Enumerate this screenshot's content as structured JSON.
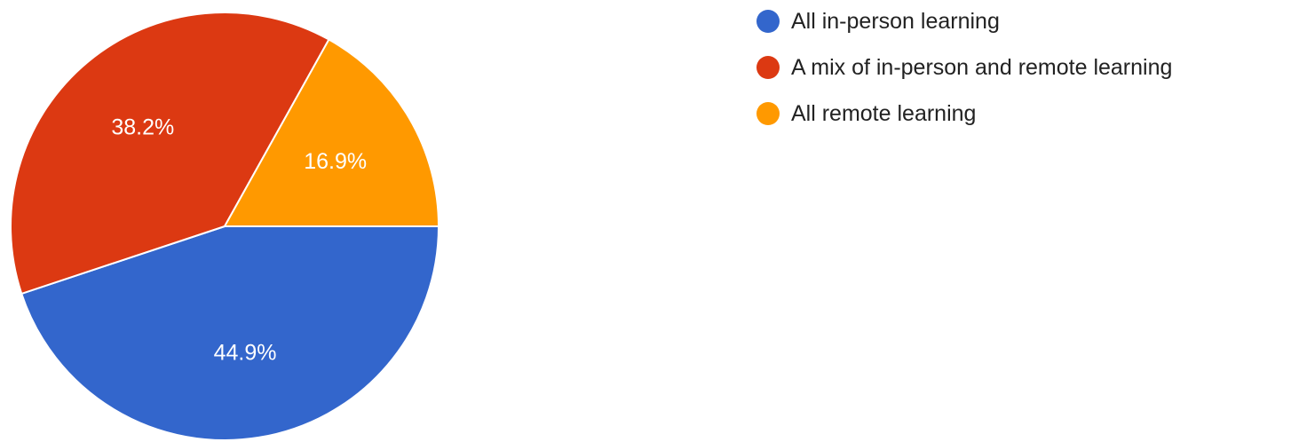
{
  "chart_data": {
    "type": "pie",
    "title": "",
    "legend_position": "top-right",
    "slices": [
      {
        "label": "All in-person learning",
        "value": 44.9,
        "display": "44.9%",
        "color": "#3366cc"
      },
      {
        "label": "A mix of in-person and remote learning",
        "value": 38.2,
        "display": "38.2%",
        "color": "#dc3912"
      },
      {
        "label": "All remote learning",
        "value": 16.9,
        "display": "16.9%",
        "color": "#ff9900"
      }
    ]
  }
}
